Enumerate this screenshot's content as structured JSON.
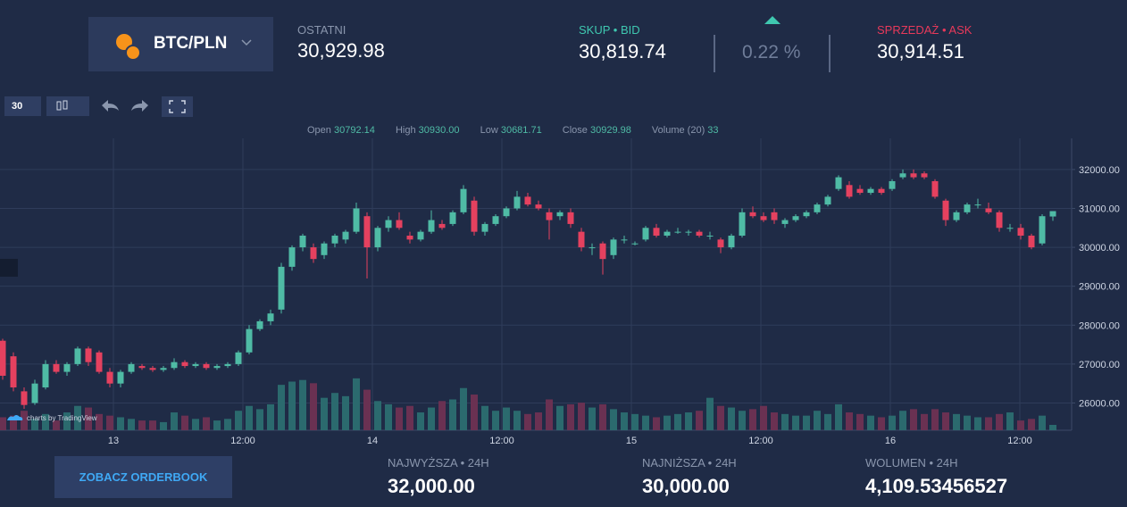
{
  "header": {
    "pair": "BTC/PLN",
    "last_label": "OSTATNI",
    "last_value": "30,929.98",
    "bid_label": "SKUP • BID",
    "bid_value": "30,819.74",
    "change": "0.22 %",
    "ask_label": "SPRZEDAŻ • ASK",
    "ask_value": "30,914.51"
  },
  "toolbar": {
    "interval": "30"
  },
  "legend": {
    "open_label": "Open",
    "open": "30792.14",
    "high_label": "High",
    "high": "30930.00",
    "low_label": "Low",
    "low": "30681.71",
    "close_label": "Close",
    "close": "30929.98",
    "volume_label": "Volume (20)",
    "volume": "33"
  },
  "chart_data": {
    "type": "candlestick",
    "watermark": "charts by TradingView",
    "up_color": "#4fbba5",
    "down_color": "#e5415f",
    "volume_up_color": "#2b6a6e",
    "volume_down_color": "#6a3152",
    "ylim": [
      25300,
      32800
    ],
    "yticks": [
      {
        "value": 26000,
        "label": "26000.00"
      },
      {
        "value": 27000,
        "label": "27000.00"
      },
      {
        "value": 28000,
        "label": "28000.00"
      },
      {
        "value": 29000,
        "label": "29000.00"
      },
      {
        "value": 30000,
        "label": "30000.00"
      },
      {
        "value": 31000,
        "label": "31000.00"
      },
      {
        "value": 32000,
        "label": "32000.00"
      }
    ],
    "volume_ylim": [
      0,
      1800
    ],
    "x_labels": [
      "13",
      "12:00",
      "14",
      "12:00",
      "15",
      "12:00",
      "16",
      "12:00"
    ],
    "grid": true,
    "candles": [
      [
        27600,
        27650,
        26600,
        26700
      ],
      [
        27200,
        27300,
        26300,
        26400
      ],
      [
        26300,
        26400,
        25850,
        25950
      ],
      [
        26000,
        26600,
        25950,
        26500
      ],
      [
        26400,
        27100,
        26350,
        27000
      ],
      [
        27000,
        27100,
        26750,
        26800
      ],
      [
        26800,
        27050,
        26700,
        27000
      ],
      [
        27000,
        27450,
        26950,
        27400
      ],
      [
        27400,
        27450,
        26950,
        27050
      ],
      [
        27300,
        27350,
        26750,
        26800
      ],
      [
        26800,
        26900,
        26400,
        26500
      ],
      [
        26500,
        26850,
        26400,
        26800
      ],
      [
        26800,
        27050,
        26750,
        27000
      ],
      [
        26950,
        27000,
        26850,
        26900
      ],
      [
        26900,
        26950,
        26800,
        26850
      ],
      [
        26850,
        26950,
        26800,
        26900
      ],
      [
        26900,
        27150,
        26850,
        27050
      ],
      [
        27050,
        27100,
        26900,
        26950
      ],
      [
        26950,
        27050,
        26900,
        27000
      ],
      [
        27000,
        27050,
        26850,
        26900
      ],
      [
        26900,
        27000,
        26850,
        26950
      ],
      [
        26950,
        27050,
        26900,
        27000
      ],
      [
        27000,
        27350,
        26950,
        27300
      ],
      [
        27300,
        28000,
        27250,
        27900
      ],
      [
        27900,
        28150,
        27850,
        28100
      ],
      [
        28100,
        28400,
        28000,
        28300
      ],
      [
        28400,
        29600,
        28300,
        29500
      ],
      [
        29500,
        30050,
        29400,
        30000
      ],
      [
        30000,
        30350,
        29900,
        30300
      ],
      [
        30000,
        30100,
        29600,
        29700
      ],
      [
        29800,
        30150,
        29700,
        30100
      ],
      [
        30100,
        30350,
        30000,
        30300
      ],
      [
        30200,
        30450,
        30100,
        30400
      ],
      [
        30400,
        31150,
        30350,
        31000
      ],
      [
        30800,
        30900,
        29200,
        30000
      ],
      [
        30000,
        30550,
        29900,
        30500
      ],
      [
        30500,
        30800,
        30400,
        30700
      ],
      [
        30700,
        30900,
        30450,
        30500
      ],
      [
        30300,
        30400,
        30100,
        30200
      ],
      [
        30200,
        30450,
        30150,
        30400
      ],
      [
        30400,
        30950,
        30350,
        30700
      ],
      [
        30600,
        30700,
        30450,
        30500
      ],
      [
        30600,
        30950,
        30550,
        30900
      ],
      [
        30900,
        31600,
        30850,
        31500
      ],
      [
        31200,
        31300,
        30300,
        30400
      ],
      [
        30400,
        30650,
        30300,
        30600
      ],
      [
        30600,
        30850,
        30550,
        30800
      ],
      [
        30800,
        31050,
        30750,
        31000
      ],
      [
        31000,
        31450,
        30950,
        31300
      ],
      [
        31300,
        31400,
        31050,
        31100
      ],
      [
        31100,
        31200,
        30950,
        31000
      ],
      [
        30900,
        31000,
        30200,
        30700
      ],
      [
        30800,
        30950,
        30700,
        30900
      ],
      [
        30900,
        31000,
        30500,
        30600
      ],
      [
        30400,
        30500,
        29900,
        30000
      ],
      [
        30000,
        30100,
        29800,
        30000
      ],
      [
        30100,
        30150,
        29300,
        29700
      ],
      [
        29800,
        30250,
        29700,
        30200
      ],
      [
        30200,
        30300,
        30100,
        30200
      ],
      [
        30100,
        30150,
        30050,
        30100
      ],
      [
        30200,
        30550,
        30150,
        30500
      ],
      [
        30500,
        30600,
        30250,
        30300
      ],
      [
        30300,
        30450,
        30250,
        30400
      ],
      [
        30400,
        30500,
        30350,
        30400
      ],
      [
        30400,
        30450,
        30300,
        30400
      ],
      [
        30400,
        30450,
        30250,
        30300
      ],
      [
        30300,
        30400,
        30200,
        30300
      ],
      [
        30200,
        30250,
        29850,
        30000
      ],
      [
        30000,
        30350,
        29950,
        30300
      ],
      [
        30300,
        31000,
        30250,
        30900
      ],
      [
        30900,
        31050,
        30750,
        30800
      ],
      [
        30800,
        30900,
        30650,
        30700
      ],
      [
        30900,
        31000,
        30600,
        30700
      ],
      [
        30600,
        30750,
        30500,
        30700
      ],
      [
        30700,
        30850,
        30650,
        30800
      ],
      [
        30800,
        30950,
        30750,
        30900
      ],
      [
        30900,
        31150,
        30850,
        31100
      ],
      [
        31100,
        31350,
        31050,
        31300
      ],
      [
        31500,
        31850,
        31450,
        31800
      ],
      [
        31600,
        31700,
        31250,
        31300
      ],
      [
        31500,
        31600,
        31350,
        31400
      ],
      [
        31400,
        31550,
        31350,
        31500
      ],
      [
        31500,
        31550,
        31350,
        31400
      ],
      [
        31500,
        31750,
        31450,
        31700
      ],
      [
        31800,
        32000,
        31750,
        31900
      ],
      [
        31900,
        32000,
        31750,
        31800
      ],
      [
        31900,
        31950,
        31750,
        31800
      ],
      [
        31700,
        31750,
        31250,
        31300
      ],
      [
        31200,
        31250,
        30550,
        30700
      ],
      [
        30700,
        30950,
        30650,
        30900
      ],
      [
        30900,
        31150,
        30850,
        31100
      ],
      [
        31100,
        31250,
        31000,
        31100
      ],
      [
        31000,
        31150,
        30850,
        30900
      ],
      [
        30900,
        30950,
        30400,
        30500
      ],
      [
        30500,
        30600,
        30400,
        30500
      ],
      [
        30500,
        30600,
        30200,
        30300
      ],
      [
        30300,
        30350,
        29950,
        30000
      ],
      [
        30100,
        30850,
        30050,
        30800
      ],
      [
        30792.14,
        30930,
        30681.71,
        30929.98
      ]
    ],
    "volumes": [
      80,
      90,
      120,
      70,
      100,
      60,
      110,
      150,
      140,
      100,
      90,
      80,
      70,
      60,
      60,
      50,
      110,
      90,
      70,
      80,
      60,
      70,
      120,
      150,
      130,
      160,
      280,
      300,
      310,
      290,
      200,
      230,
      210,
      320,
      250,
      180,
      160,
      140,
      150,
      110,
      140,
      180,
      190,
      260,
      220,
      150,
      120,
      140,
      120,
      100,
      110,
      190,
      150,
      160,
      170,
      140,
      160,
      130,
      110,
      100,
      90,
      80,
      90,
      100,
      110,
      120,
      200,
      150,
      140,
      120,
      130,
      150,
      110,
      100,
      90,
      90,
      120,
      100,
      160,
      110,
      100,
      90,
      80,
      90,
      120,
      130,
      100,
      130,
      110,
      100,
      90,
      80,
      80,
      100,
      110,
      60,
      70,
      90,
      33
    ]
  },
  "footer": {
    "button": "ZOBACZ ORDERBOOK",
    "high_label": "NAJWYŻSZA • 24H",
    "high_value": "32,000.00",
    "low_label": "NAJNIŻSZA • 24H",
    "low_value": "30,000.00",
    "volume_label": "WOLUMEN • 24H",
    "volume_value": "4,109.53456527"
  }
}
